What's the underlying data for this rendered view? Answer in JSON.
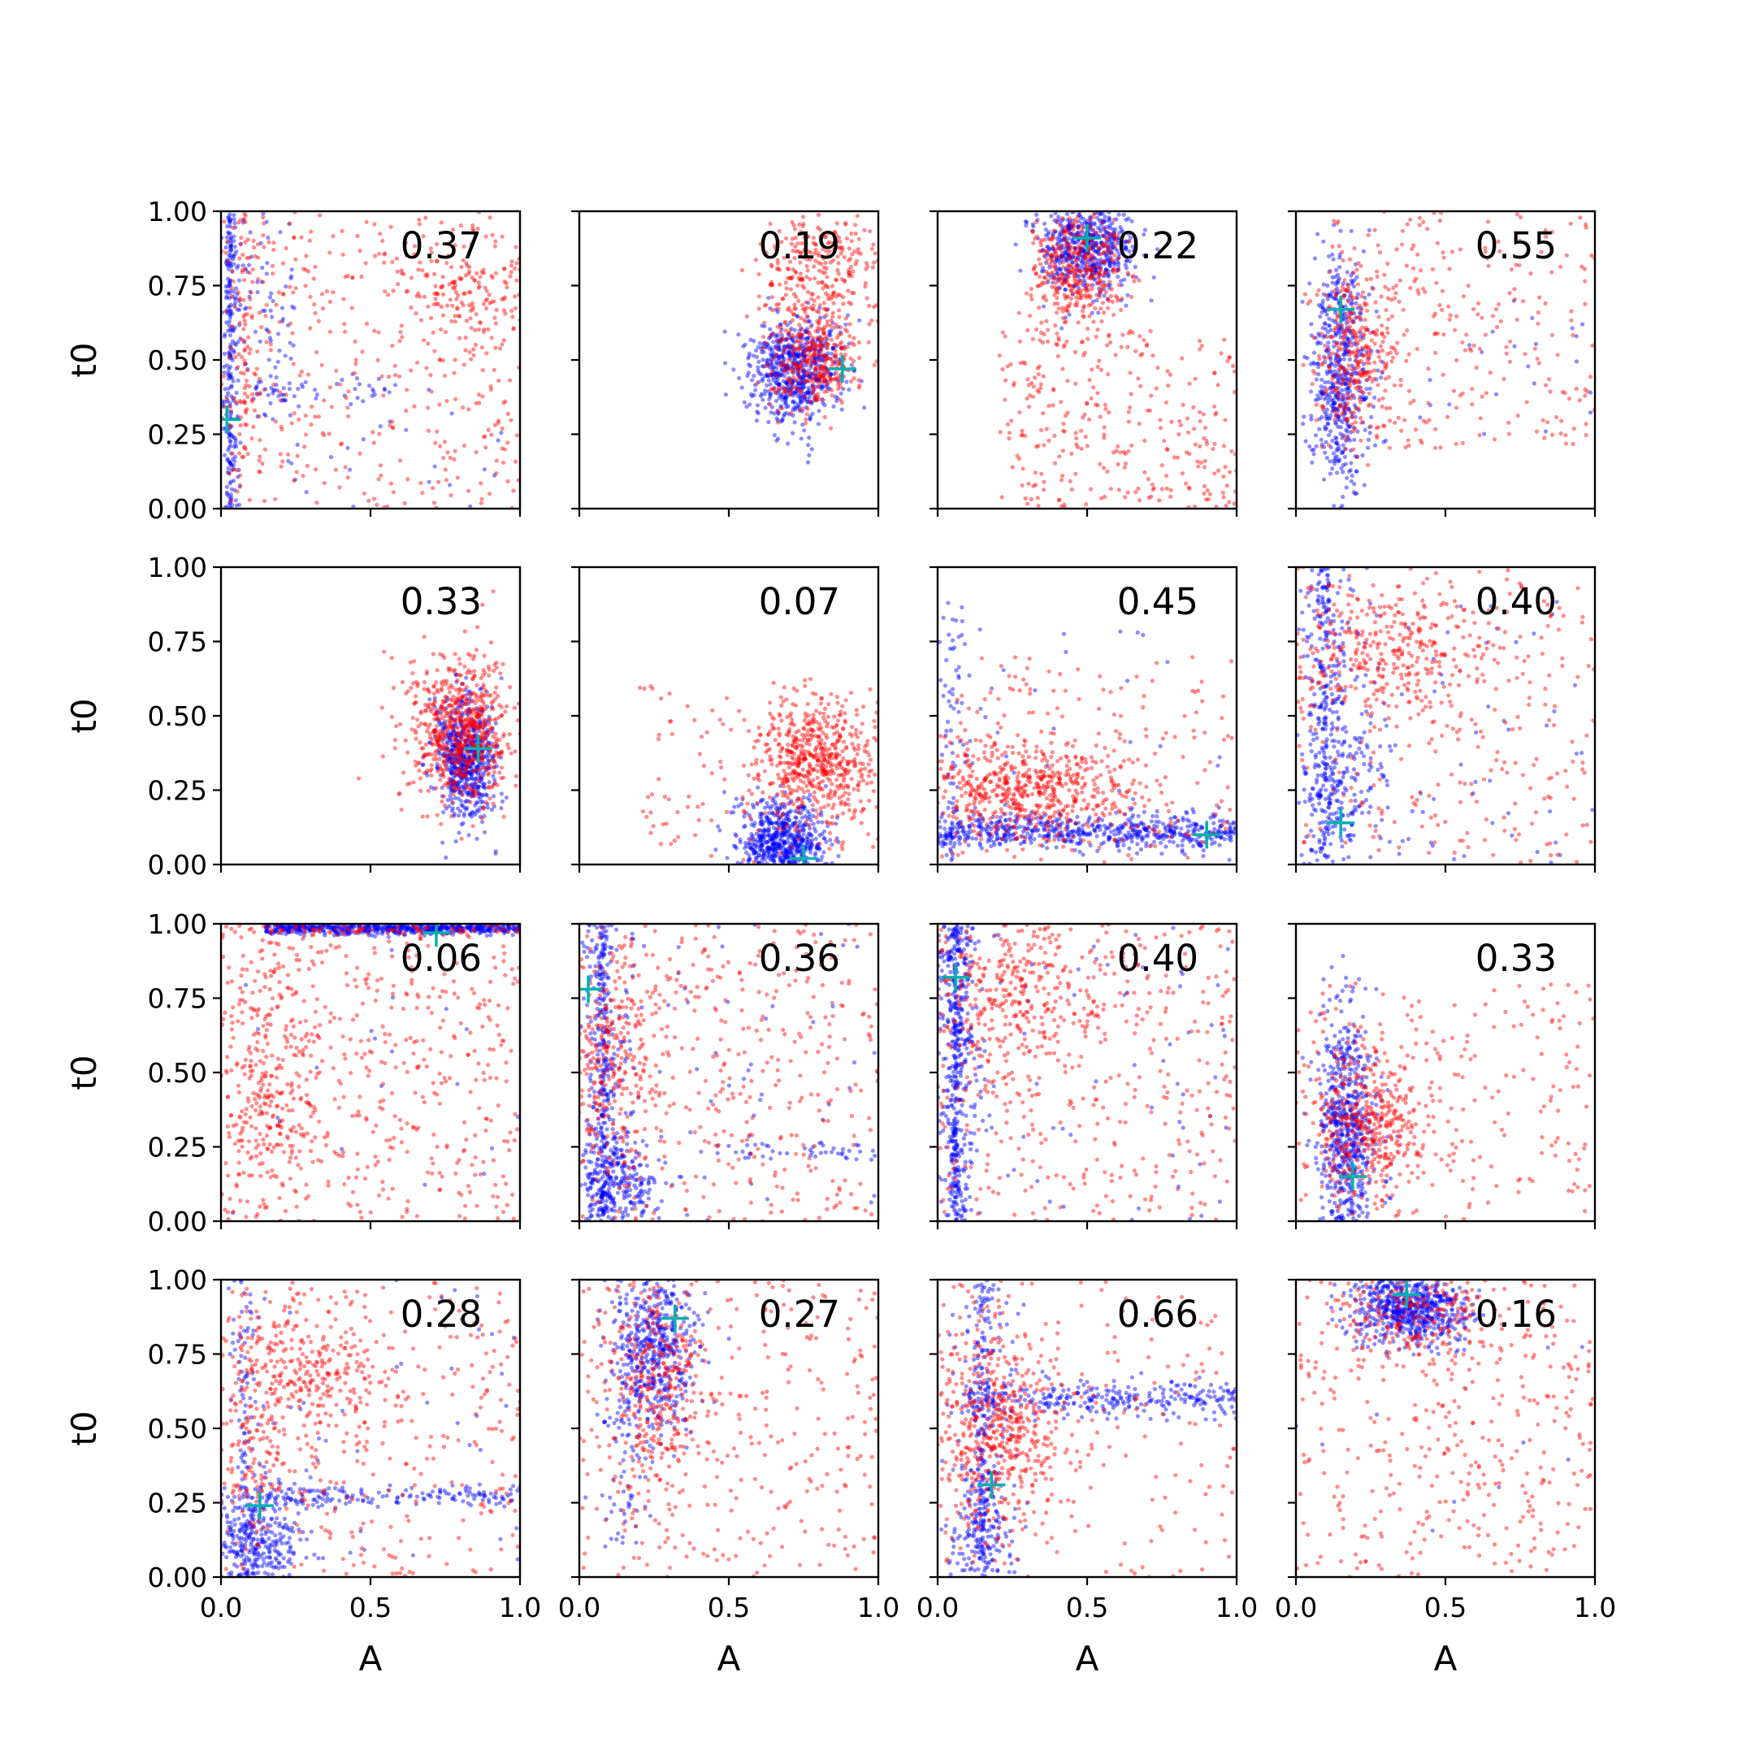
{
  "chart_data": {
    "type": "scatter",
    "layout": "4x4 grid",
    "xlabel": "A",
    "ylabel": "t0",
    "xlim": [
      0.0,
      1.0
    ],
    "ylim": [
      0.0,
      1.0
    ],
    "xticks": [
      "0.0",
      "0.5",
      "1.0"
    ],
    "yticks": [
      "0.00",
      "0.25",
      "0.50",
      "0.75",
      "1.00"
    ],
    "colors": {
      "series_a": "#0000ff",
      "series_b": "#ff0000",
      "marker": "#00b0b0"
    },
    "panels": [
      {
        "label": "0.37",
        "marker": [
          0.02,
          0.3
        ],
        "blue": [
          {
            "type": "vband",
            "cx": 0.03,
            "w": 0.05,
            "ymin": 0.0,
            "ymax": 1.0,
            "n": 260
          },
          {
            "type": "uniform",
            "x0": 0.05,
            "x1": 0.25,
            "y0": 0.3,
            "y1": 1.0,
            "n": 70
          },
          {
            "type": "hline",
            "x0": 0.1,
            "x1": 0.6,
            "y": 0.4,
            "sy": 0.02,
            "n": 50
          },
          {
            "type": "uniform",
            "x0": 0.2,
            "x1": 1.0,
            "y0": 0.0,
            "y1": 0.4,
            "n": 25
          }
        ],
        "red": [
          {
            "type": "uniform",
            "x0": 0.0,
            "x1": 1.0,
            "y0": 0.0,
            "y1": 1.0,
            "n": 350
          },
          {
            "type": "gauss",
            "cx": 0.8,
            "cy": 0.72,
            "sx": 0.12,
            "sy": 0.1,
            "n": 160
          },
          {
            "type": "vband",
            "cx": 0.08,
            "w": 0.1,
            "ymin": 0.1,
            "ymax": 1.0,
            "n": 120
          }
        ]
      },
      {
        "label": "0.19",
        "marker": [
          0.88,
          0.47
        ],
        "blue": [
          {
            "type": "gauss",
            "cx": 0.72,
            "cy": 0.47,
            "sx": 0.08,
            "sy": 0.09,
            "n": 650
          }
        ],
        "red": [
          {
            "type": "gauss",
            "cx": 0.78,
            "cy": 0.5,
            "sx": 0.08,
            "sy": 0.09,
            "n": 350
          },
          {
            "type": "gauss",
            "cx": 0.8,
            "cy": 0.8,
            "sx": 0.1,
            "sy": 0.12,
            "n": 300
          }
        ]
      },
      {
        "label": "0.22",
        "marker": [
          0.5,
          0.91
        ],
        "blue": [
          {
            "type": "gauss",
            "cx": 0.5,
            "cy": 0.88,
            "sx": 0.08,
            "sy": 0.08,
            "n": 600
          }
        ],
        "red": [
          {
            "type": "gauss",
            "cx": 0.47,
            "cy": 0.8,
            "sx": 0.08,
            "sy": 0.1,
            "n": 400
          },
          {
            "type": "uniform",
            "x0": 0.2,
            "x1": 1.0,
            "y0": 0.0,
            "y1": 0.6,
            "n": 300
          }
        ]
      },
      {
        "label": "0.55",
        "marker": [
          0.15,
          0.67
        ],
        "blue": [
          {
            "type": "gauss",
            "cx": 0.15,
            "cy": 0.45,
            "sx": 0.05,
            "sy": 0.2,
            "n": 550
          },
          {
            "type": "uniform",
            "x0": 0.2,
            "x1": 1.0,
            "y0": 0.2,
            "y1": 0.7,
            "n": 25
          }
        ],
        "red": [
          {
            "type": "gauss",
            "cx": 0.2,
            "cy": 0.5,
            "sx": 0.07,
            "sy": 0.15,
            "n": 300
          },
          {
            "type": "uniform",
            "x0": 0.1,
            "x1": 1.0,
            "y0": 0.2,
            "y1": 1.0,
            "n": 250
          }
        ]
      },
      {
        "label": "0.33",
        "marker": [
          0.86,
          0.39
        ],
        "blue": [
          {
            "type": "gauss",
            "cx": 0.82,
            "cy": 0.36,
            "sx": 0.05,
            "sy": 0.1,
            "n": 650
          }
        ],
        "red": [
          {
            "type": "gauss",
            "cx": 0.8,
            "cy": 0.45,
            "sx": 0.09,
            "sy": 0.12,
            "n": 700
          }
        ]
      },
      {
        "label": "0.07",
        "marker": [
          0.75,
          0.02
        ],
        "blue": [
          {
            "type": "gauss",
            "cx": 0.68,
            "cy": 0.08,
            "sx": 0.07,
            "sy": 0.07,
            "n": 650
          }
        ],
        "red": [
          {
            "type": "gauss",
            "cx": 0.8,
            "cy": 0.36,
            "sx": 0.1,
            "sy": 0.1,
            "n": 550
          },
          {
            "type": "uniform",
            "x0": 0.2,
            "x1": 1.0,
            "y0": 0.0,
            "y1": 0.6,
            "n": 120
          }
        ]
      },
      {
        "label": "0.45",
        "marker": [
          0.9,
          0.1
        ],
        "blue": [
          {
            "type": "hline",
            "x0": 0.0,
            "x1": 1.0,
            "y": 0.11,
            "sy": 0.03,
            "n": 600
          },
          {
            "type": "vband",
            "cx": 0.05,
            "w": 0.08,
            "ymin": 0.0,
            "ymax": 0.9,
            "n": 80
          },
          {
            "type": "uniform",
            "x0": 0.1,
            "x1": 1.0,
            "y0": 0.0,
            "y1": 0.8,
            "n": 30
          }
        ],
        "red": [
          {
            "type": "gauss",
            "cx": 0.3,
            "cy": 0.25,
            "sx": 0.18,
            "sy": 0.08,
            "n": 550
          },
          {
            "type": "uniform",
            "x0": 0.0,
            "x1": 1.0,
            "y0": 0.0,
            "y1": 0.7,
            "n": 180
          }
        ]
      },
      {
        "label": "0.40",
        "marker": [
          0.15,
          0.14
        ],
        "blue": [
          {
            "type": "vband",
            "cx": 0.1,
            "w": 0.15,
            "ymin": 0.0,
            "ymax": 1.0,
            "n": 350
          },
          {
            "type": "gauss",
            "cx": 0.15,
            "cy": 0.3,
            "sx": 0.1,
            "sy": 0.15,
            "n": 150
          },
          {
            "type": "uniform",
            "x0": 0.2,
            "x1": 1.0,
            "y0": 0.0,
            "y1": 0.9,
            "n": 60
          }
        ],
        "red": [
          {
            "type": "uniform",
            "x0": 0.0,
            "x1": 1.0,
            "y0": 0.0,
            "y1": 1.0,
            "n": 250
          },
          {
            "type": "gauss",
            "cx": 0.3,
            "cy": 0.7,
            "sx": 0.2,
            "sy": 0.12,
            "n": 350
          }
        ]
      },
      {
        "label": "0.06",
        "marker": [
          0.72,
          0.97
        ],
        "blue": [
          {
            "type": "hline",
            "x0": 0.15,
            "x1": 1.0,
            "y": 0.985,
            "sy": 0.01,
            "n": 650
          },
          {
            "type": "uniform",
            "x0": 0.0,
            "x1": 1.0,
            "y0": 0.0,
            "y1": 1.0,
            "n": 20
          }
        ],
        "red": [
          {
            "type": "uniform",
            "x0": 0.0,
            "x1": 1.0,
            "y0": 0.0,
            "y1": 1.0,
            "n": 500
          },
          {
            "type": "gauss",
            "cx": 0.15,
            "cy": 0.45,
            "sx": 0.1,
            "sy": 0.2,
            "n": 250
          },
          {
            "type": "hline",
            "x0": 0.0,
            "x1": 1.0,
            "y": 0.98,
            "sy": 0.01,
            "n": 80
          }
        ]
      },
      {
        "label": "0.36",
        "marker": [
          0.03,
          0.78
        ],
        "blue": [
          {
            "type": "vband",
            "cx": 0.08,
            "w": 0.1,
            "ymin": 0.0,
            "ymax": 1.0,
            "n": 400
          },
          {
            "type": "gauss",
            "cx": 0.12,
            "cy": 0.12,
            "sx": 0.08,
            "sy": 0.08,
            "n": 250
          },
          {
            "type": "hline",
            "x0": 0.4,
            "x1": 1.0,
            "y": 0.23,
            "sy": 0.02,
            "n": 40
          },
          {
            "type": "uniform",
            "x0": 0.1,
            "x1": 1.0,
            "y0": 0.0,
            "y1": 1.0,
            "n": 60
          }
        ],
        "red": [
          {
            "type": "uniform",
            "x0": 0.0,
            "x1": 1.0,
            "y0": 0.0,
            "y1": 1.0,
            "n": 400
          },
          {
            "type": "gauss",
            "cx": 0.1,
            "cy": 0.55,
            "sx": 0.08,
            "sy": 0.2,
            "n": 250
          }
        ]
      },
      {
        "label": "0.40",
        "marker": [
          0.06,
          0.82
        ],
        "blue": [
          {
            "type": "vband",
            "cx": 0.06,
            "w": 0.1,
            "ymin": 0.0,
            "ymax": 1.0,
            "n": 550
          },
          {
            "type": "uniform",
            "x0": 0.1,
            "x1": 1.0,
            "y0": 0.0,
            "y1": 1.0,
            "n": 60
          }
        ],
        "red": [
          {
            "type": "uniform",
            "x0": 0.0,
            "x1": 1.0,
            "y0": 0.0,
            "y1": 1.0,
            "n": 400
          },
          {
            "type": "gauss",
            "cx": 0.25,
            "cy": 0.78,
            "sx": 0.15,
            "sy": 0.15,
            "n": 300
          }
        ]
      },
      {
        "label": "0.33",
        "marker": [
          0.19,
          0.15
        ],
        "blue": [
          {
            "type": "gauss",
            "cx": 0.17,
            "cy": 0.3,
            "sx": 0.05,
            "sy": 0.2,
            "n": 650
          }
        ],
        "red": [
          {
            "type": "gauss",
            "cx": 0.25,
            "cy": 0.33,
            "sx": 0.09,
            "sy": 0.12,
            "n": 400
          },
          {
            "type": "uniform",
            "x0": 0.0,
            "x1": 1.0,
            "y0": 0.0,
            "y1": 0.8,
            "n": 220
          }
        ]
      },
      {
        "label": "0.28",
        "marker": [
          0.13,
          0.24
        ],
        "blue": [
          {
            "type": "gauss",
            "cx": 0.12,
            "cy": 0.12,
            "sx": 0.08,
            "sy": 0.1,
            "n": 350
          },
          {
            "type": "vband",
            "cx": 0.08,
            "w": 0.1,
            "ymin": 0.0,
            "ymax": 1.0,
            "n": 120
          },
          {
            "type": "hline",
            "x0": 0.15,
            "x1": 1.0,
            "y": 0.27,
            "sy": 0.02,
            "n": 150
          },
          {
            "type": "uniform",
            "x0": 0.1,
            "x1": 1.0,
            "y0": 0.0,
            "y1": 1.0,
            "n": 40
          }
        ],
        "red": [
          {
            "type": "uniform",
            "x0": 0.0,
            "x1": 1.0,
            "y0": 0.0,
            "y1": 1.0,
            "n": 300
          },
          {
            "type": "gauss",
            "cx": 0.28,
            "cy": 0.68,
            "sx": 0.15,
            "sy": 0.12,
            "n": 300
          },
          {
            "type": "gauss",
            "cx": 0.1,
            "cy": 0.35,
            "sx": 0.06,
            "sy": 0.2,
            "n": 100
          }
        ]
      },
      {
        "label": "0.27",
        "marker": [
          0.32,
          0.87
        ],
        "blue": [
          {
            "type": "gauss",
            "cx": 0.25,
            "cy": 0.78,
            "sx": 0.07,
            "sy": 0.15,
            "n": 550
          },
          {
            "type": "vband",
            "cx": 0.15,
            "w": 0.12,
            "ymin": 0.1,
            "ymax": 0.6,
            "n": 60
          }
        ],
        "red": [
          {
            "type": "gauss",
            "cx": 0.25,
            "cy": 0.65,
            "sx": 0.08,
            "sy": 0.18,
            "n": 300
          },
          {
            "type": "uniform",
            "x0": 0.0,
            "x1": 1.0,
            "y0": 0.0,
            "y1": 1.0,
            "n": 320
          }
        ]
      },
      {
        "label": "0.66",
        "marker": [
          0.18,
          0.31
        ],
        "blue": [
          {
            "type": "vband",
            "cx": 0.15,
            "w": 0.12,
            "ymin": 0.0,
            "ymax": 1.0,
            "n": 250
          },
          {
            "type": "hline",
            "x0": 0.1,
            "x1": 1.0,
            "y": 0.6,
            "sy": 0.03,
            "n": 300
          },
          {
            "type": "gauss",
            "cx": 0.15,
            "cy": 0.15,
            "sx": 0.06,
            "sy": 0.1,
            "n": 150
          }
        ],
        "red": [
          {
            "type": "gauss",
            "cx": 0.2,
            "cy": 0.5,
            "sx": 0.1,
            "sy": 0.18,
            "n": 500
          },
          {
            "type": "uniform",
            "x0": 0.0,
            "x1": 1.0,
            "y0": 0.0,
            "y1": 1.0,
            "n": 180
          }
        ]
      },
      {
        "label": "0.16",
        "marker": [
          0.37,
          0.95
        ],
        "blue": [
          {
            "type": "gauss",
            "cx": 0.38,
            "cy": 0.9,
            "sx": 0.1,
            "sy": 0.06,
            "n": 650
          },
          {
            "type": "uniform",
            "x0": 0.0,
            "x1": 1.0,
            "y0": 0.0,
            "y1": 1.0,
            "n": 10
          }
        ],
        "red": [
          {
            "type": "gauss",
            "cx": 0.4,
            "cy": 0.88,
            "sx": 0.15,
            "sy": 0.08,
            "n": 200
          },
          {
            "type": "uniform",
            "x0": 0.0,
            "x1": 1.0,
            "y0": 0.0,
            "y1": 1.0,
            "n": 380
          }
        ]
      }
    ]
  }
}
